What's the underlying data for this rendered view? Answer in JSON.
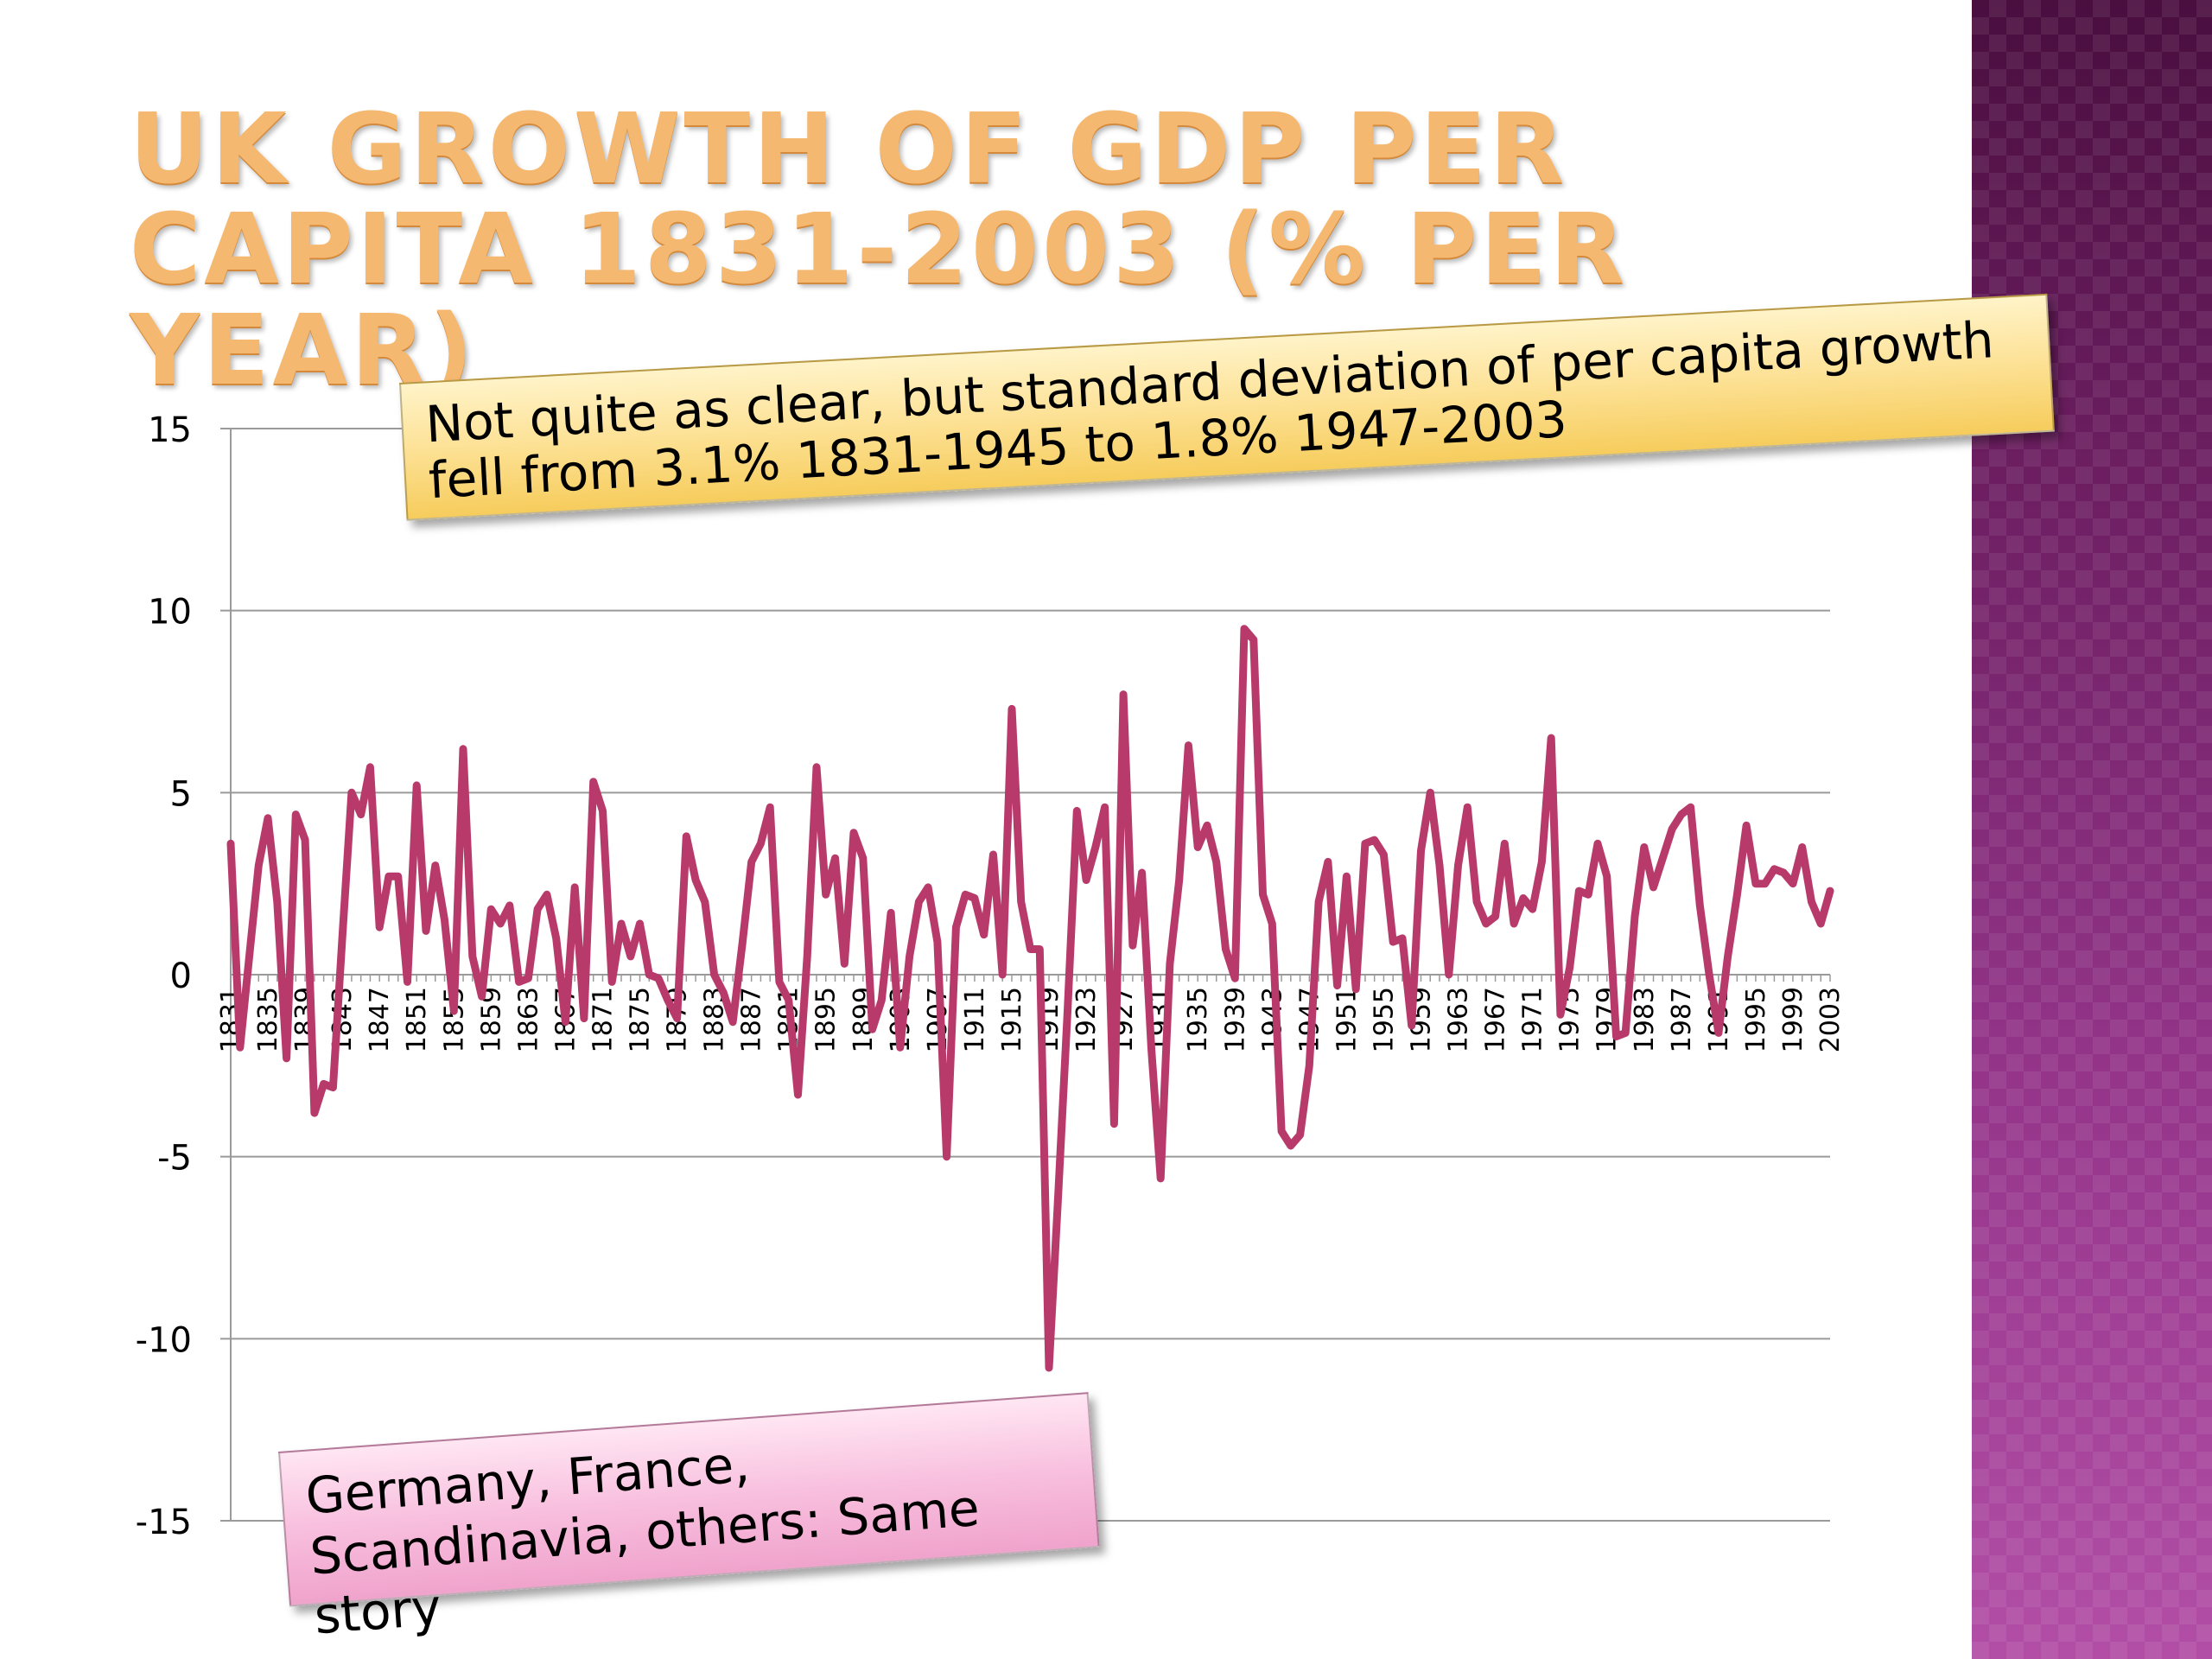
{
  "slide": {
    "title": "UK Growth of GDP per capita 1831-2003 (% per year)"
  },
  "callouts": {
    "top": "Not quite as clear, but standard deviation of per capita growth fell from 3.1% 1831-1945 to 1.8% 1947-2003",
    "bottom": "Germany, France, Scandinavia, others: Same story"
  },
  "colors": {
    "line": "#b83a6a",
    "title": "#f5b870",
    "gridline": "#9a9a9a",
    "side_band": "#7a2a6e"
  },
  "chart_data": {
    "type": "line",
    "title": "",
    "xlabel": "",
    "ylabel": "",
    "x_start": 1831,
    "x_end": 2003,
    "ylim": [
      -15,
      15
    ],
    "y_ticks": [
      15,
      10,
      5,
      0,
      -5,
      -10,
      -15
    ],
    "x_tick_labels": [
      "1831",
      "1835",
      "1839",
      "1843",
      "1847",
      "1851",
      "1855",
      "1859",
      "1863",
      "1867",
      "1871",
      "1875",
      "1879",
      "1883",
      "1887",
      "1891",
      "1895",
      "1899",
      "1903",
      "1907",
      "1911",
      "1915",
      "1919",
      "1923",
      "1927",
      "1931",
      "1935",
      "1939",
      "1943",
      "1947",
      "1951",
      "1955",
      "1959",
      "1963",
      "1967",
      "1971",
      "1975",
      "1979",
      "1983",
      "1987",
      "1991",
      "1995",
      "1999",
      "2003"
    ],
    "grid": true,
    "series": [
      {
        "values": [
          3.6,
          -2.0,
          0.5,
          3.0,
          4.3,
          2.0,
          -2.3,
          4.4,
          3.7,
          -3.8,
          -3.0,
          -3.1,
          1.0,
          5.0,
          4.4,
          5.7,
          1.3,
          2.7,
          2.7,
          -0.2,
          5.2,
          1.2,
          3.0,
          1.5,
          -1.0,
          6.2,
          0.5,
          -0.6,
          1.8,
          1.4,
          1.9,
          -0.2,
          -0.1,
          1.8,
          2.2,
          1.0,
          -1.3,
          2.4,
          -1.2,
          5.3,
          4.5,
          -0.2,
          1.4,
          0.5,
          1.4,
          0.0,
          -0.1,
          -0.7,
          -1.2,
          3.8,
          2.6,
          2.0,
          0.0,
          -0.5,
          -1.3,
          0.8,
          3.1,
          3.6,
          4.6,
          -0.2,
          -0.7,
          -3.3,
          0.5,
          5.7,
          2.2,
          3.2,
          0.3,
          3.9,
          3.2,
          -1.5,
          -0.7,
          1.7,
          -2.0,
          0.5,
          2.0,
          2.4,
          0.9,
          -5.0,
          1.3,
          2.2,
          2.1,
          1.1,
          3.3,
          0.0,
          7.3,
          2.0,
          0.7,
          0.7,
          -10.8,
          -6.0,
          -1.0,
          4.5,
          2.6,
          3.5,
          4.6,
          -4.1,
          7.7,
          0.8,
          2.8,
          -2.0,
          -5.6,
          0.3,
          2.6,
          6.3,
          3.5,
          4.1,
          3.1,
          0.7,
          -0.1,
          9.5,
          9.2,
          2.2,
          1.4,
          -4.3,
          -4.7,
          -4.4,
          -2.5,
          2.0,
          3.1,
          -0.3,
          2.7,
          -0.4,
          3.6,
          3.7,
          3.3,
          0.9,
          1.0,
          -1.4,
          3.4,
          5.0,
          3.0,
          0.0,
          3.0,
          4.6,
          2.0,
          1.4,
          1.6,
          3.6,
          1.4,
          2.1,
          1.8,
          3.1,
          6.5,
          -1.1,
          0.2,
          2.3,
          2.2,
          3.6,
          2.7,
          -1.7,
          -1.6,
          1.6,
          3.5,
          2.4,
          3.2,
          4.0,
          4.4,
          4.6,
          1.9,
          0.0,
          -1.6,
          0.5,
          2.2,
          4.1,
          2.5,
          2.5,
          2.9,
          2.8,
          2.5,
          3.5,
          2.0,
          1.4,
          2.3
        ]
      }
    ]
  }
}
